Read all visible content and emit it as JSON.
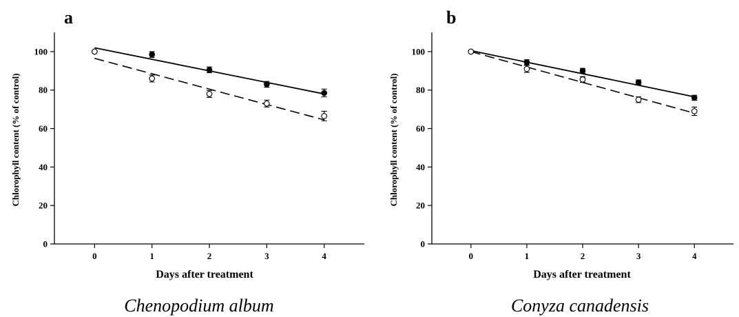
{
  "chart_data": [
    {
      "type": "scatter",
      "panel_label": "a",
      "caption": "Chenopodium album",
      "xlabel": "Days after treatment",
      "ylabel": "Chlorophyll content (% of control)",
      "xlim": [
        -0.7,
        4.7
      ],
      "ylim": [
        0,
        110
      ],
      "x_ticks": [
        0,
        1,
        2,
        3,
        4
      ],
      "y_ticks": [
        0,
        20,
        40,
        60,
        80,
        100
      ],
      "grid": false,
      "series": [
        {
          "marker": "filled-circle",
          "line": "solid",
          "x": [
            0,
            1,
            2,
            3,
            4
          ],
          "y": [
            100,
            98.5,
            90.5,
            83,
            78.5
          ],
          "error": [
            0,
            1.5,
            1.5,
            1.5,
            2.0
          ],
          "fit": [
            [
              0,
              102
            ],
            [
              4,
              78
            ]
          ]
        },
        {
          "marker": "open-circle",
          "line": "dashed",
          "x": [
            0,
            1,
            2,
            3,
            4
          ],
          "y": [
            100,
            86,
            78,
            73,
            66.5
          ],
          "error": [
            0,
            1.8,
            1.8,
            1.8,
            2.5
          ],
          "fit": [
            [
              0,
              96.5
            ],
            [
              4,
              64.5
            ]
          ]
        }
      ]
    },
    {
      "type": "scatter",
      "panel_label": "b",
      "caption": "Conyza canadensis",
      "xlabel": "Days after treatment",
      "ylabel": "Chlorophyll content (% of control)",
      "xlim": [
        -0.7,
        4.7
      ],
      "ylim": [
        0,
        110
      ],
      "x_ticks": [
        0,
        1,
        2,
        3,
        4
      ],
      "y_ticks": [
        0,
        20,
        40,
        60,
        80,
        100
      ],
      "grid": false,
      "series": [
        {
          "marker": "filled-circle",
          "line": "solid",
          "x": [
            0,
            1,
            2,
            3,
            4
          ],
          "y": [
            100,
            94.5,
            90,
            84,
            76
          ],
          "error": [
            0,
            1.3,
            1.3,
            1.3,
            1.3
          ],
          "fit": [
            [
              0,
              100.5
            ],
            [
              4,
              76.5
            ]
          ]
        },
        {
          "marker": "open-circle",
          "line": "dashed",
          "x": [
            0,
            1,
            2,
            3,
            4
          ],
          "y": [
            100,
            91,
            85.5,
            75,
            69
          ],
          "error": [
            0,
            1.8,
            1.5,
            1.5,
            2.2
          ],
          "fit": [
            [
              0,
              100
            ],
            [
              4,
              68
            ]
          ]
        }
      ]
    }
  ]
}
